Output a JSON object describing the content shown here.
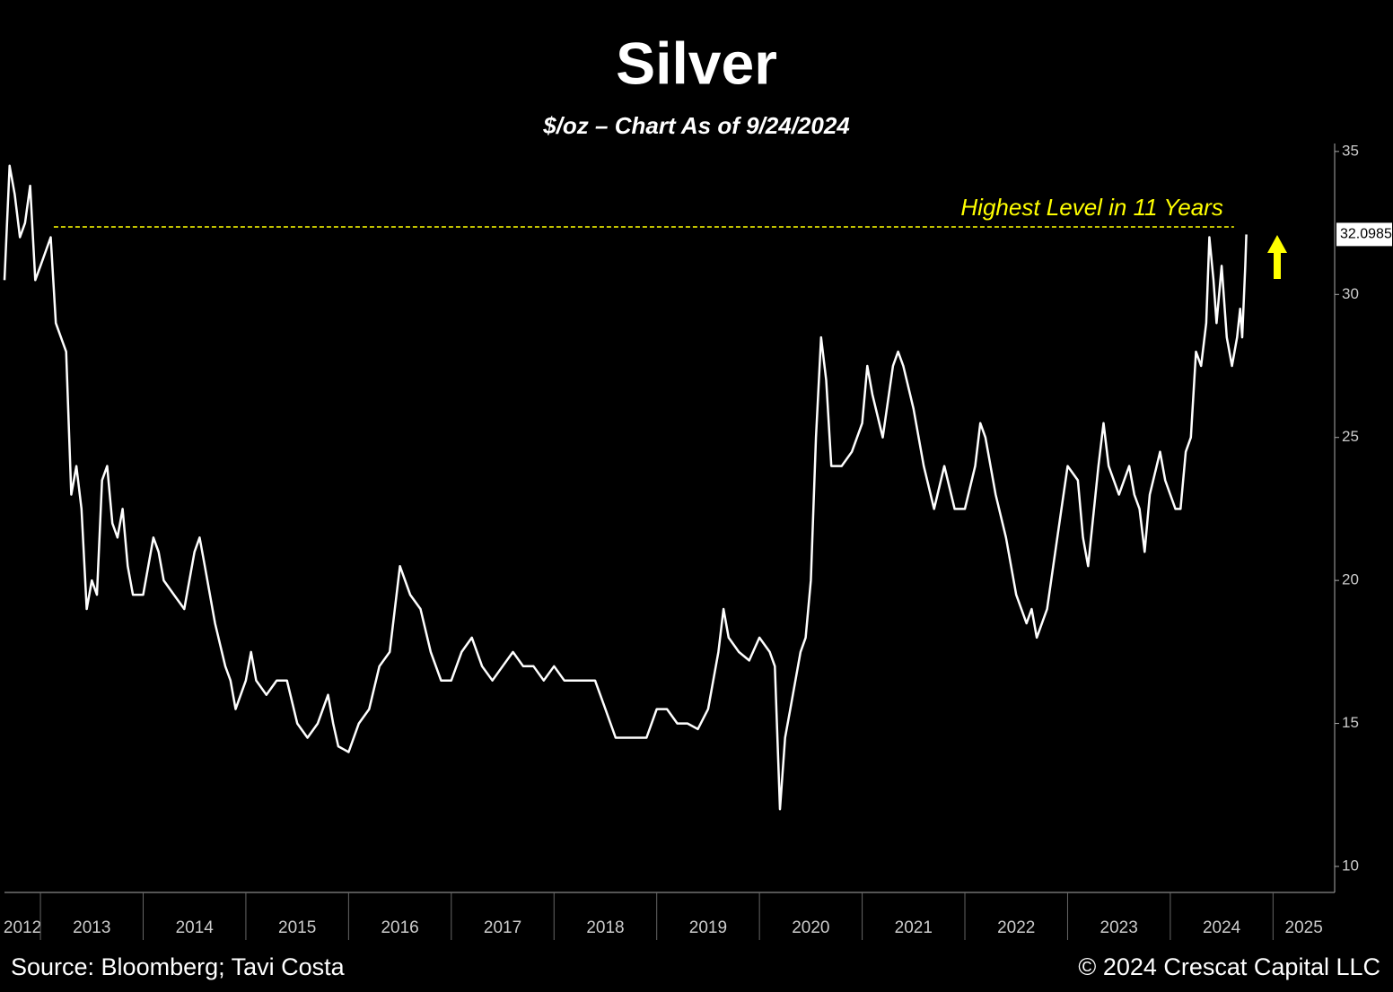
{
  "chart_data": {
    "type": "line",
    "title": "Silver",
    "subtitle": "$/oz – Chart As of 9/24/2024",
    "source": "Source: Bloomberg; Tavi Costa",
    "copyright": "© 2024 Crescat Capital LLC",
    "annotation": {
      "text": "Highest Level in 11 Years",
      "value": 32.36,
      "x": [
        2013.13,
        2024.62
      ],
      "color": "#ffff00"
    },
    "xlim": [
      2012.65,
      2025.6
    ],
    "xticks": [
      2012,
      2013,
      2014,
      2015,
      2016,
      2017,
      2018,
      2019,
      2020,
      2021,
      2022,
      2023,
      2024,
      2025
    ],
    "ylim": [
      10,
      36.2
    ],
    "yticks": [
      10,
      15,
      20,
      25,
      30,
      35
    ],
    "x": [
      2012.65,
      2012.7,
      2012.75,
      2012.8,
      2012.85,
      2012.9,
      2012.95,
      2013.0,
      2013.05,
      2013.1,
      2013.15,
      2013.2,
      2013.25,
      2013.3,
      2013.35,
      2013.4,
      2013.45,
      2013.5,
      2013.55,
      2013.6,
      2013.65,
      2013.7,
      2013.75,
      2013.8,
      2013.85,
      2013.9,
      2014.0,
      2014.1,
      2014.15,
      2014.2,
      2014.3,
      2014.4,
      2014.45,
      2014.5,
      2014.55,
      2014.6,
      2014.7,
      2014.8,
      2014.85,
      2014.9,
      2015.0,
      2015.05,
      2015.1,
      2015.2,
      2015.3,
      2015.4,
      2015.5,
      2015.6,
      2015.7,
      2015.8,
      2015.85,
      2015.9,
      2016.0,
      2016.1,
      2016.2,
      2016.3,
      2016.4,
      2016.45,
      2016.5,
      2016.55,
      2016.6,
      2016.7,
      2016.8,
      2016.9,
      2017.0,
      2017.1,
      2017.2,
      2017.3,
      2017.4,
      2017.5,
      2017.6,
      2017.7,
      2017.8,
      2017.9,
      2018.0,
      2018.1,
      2018.2,
      2018.3,
      2018.4,
      2018.5,
      2018.6,
      2018.7,
      2018.8,
      2018.9,
      2019.0,
      2019.1,
      2019.2,
      2019.3,
      2019.4,
      2019.5,
      2019.6,
      2019.65,
      2019.7,
      2019.8,
      2019.9,
      2020.0,
      2020.1,
      2020.15,
      2020.2,
      2020.25,
      2020.3,
      2020.4,
      2020.45,
      2020.5,
      2020.55,
      2020.6,
      2020.65,
      2020.7,
      2020.8,
      2020.9,
      2021.0,
      2021.05,
      2021.1,
      2021.2,
      2021.3,
      2021.35,
      2021.4,
      2021.5,
      2021.6,
      2021.7,
      2021.8,
      2021.9,
      2022.0,
      2022.1,
      2022.15,
      2022.2,
      2022.3,
      2022.4,
      2022.5,
      2022.6,
      2022.65,
      2022.7,
      2022.8,
      2022.9,
      2023.0,
      2023.1,
      2023.15,
      2023.2,
      2023.3,
      2023.35,
      2023.4,
      2023.5,
      2023.6,
      2023.65,
      2023.7,
      2023.75,
      2023.8,
      2023.9,
      2023.95,
      2024.0,
      2024.05,
      2024.1,
      2024.15,
      2024.2,
      2024.25,
      2024.3,
      2024.35,
      2024.38,
      2024.42,
      2024.45,
      2024.5,
      2024.55,
      2024.6,
      2024.65,
      2024.68,
      2024.7,
      2024.73,
      2024.74
    ],
    "series": [
      {
        "name": "Silver",
        "color": "#ffffff",
        "values": [
          30.5,
          34.5,
          33.5,
          32.0,
          32.5,
          33.8,
          30.5,
          31.0,
          31.5,
          32.0,
          29.0,
          28.5,
          28.0,
          23.0,
          24.0,
          22.5,
          19.0,
          20.0,
          19.5,
          23.5,
          24.0,
          22.0,
          21.5,
          22.5,
          20.5,
          19.5,
          19.5,
          21.5,
          21.0,
          20.0,
          19.5,
          19.0,
          20.0,
          21.0,
          21.5,
          20.5,
          18.5,
          17.0,
          16.5,
          15.5,
          16.5,
          17.5,
          16.5,
          16.0,
          16.5,
          16.5,
          15.0,
          14.5,
          15.0,
          16.0,
          15.0,
          14.2,
          14.0,
          15.0,
          15.5,
          17.0,
          17.5,
          19.0,
          20.5,
          20.0,
          19.5,
          19.0,
          17.5,
          16.5,
          16.5,
          17.5,
          18.0,
          17.0,
          16.5,
          17.0,
          17.5,
          17.0,
          17.0,
          16.5,
          17.0,
          16.5,
          16.5,
          16.5,
          16.5,
          15.5,
          14.5,
          14.5,
          14.5,
          14.5,
          15.5,
          15.5,
          15.0,
          15.0,
          14.8,
          15.5,
          17.5,
          19.0,
          18.0,
          17.5,
          17.2,
          18.0,
          17.5,
          17.0,
          12.0,
          14.5,
          15.5,
          17.5,
          18.0,
          20.0,
          25.0,
          28.5,
          27.0,
          24.0,
          24.0,
          24.5,
          25.5,
          27.5,
          26.5,
          25.0,
          27.5,
          28.0,
          27.5,
          26.0,
          24.0,
          22.5,
          24.0,
          22.5,
          22.5,
          24.0,
          25.5,
          25.0,
          23.0,
          21.5,
          19.5,
          18.5,
          19.0,
          18.0,
          19.0,
          21.5,
          24.0,
          23.5,
          21.5,
          20.5,
          24.0,
          25.5,
          24.0,
          23.0,
          24.0,
          23.0,
          22.5,
          21.0,
          23.0,
          24.5,
          23.5,
          23.0,
          22.5,
          22.5,
          24.5,
          25.0,
          28.0,
          27.5,
          29.0,
          32.0,
          30.5,
          29.0,
          31.0,
          28.5,
          27.5,
          28.5,
          29.5,
          28.5,
          31.0,
          32.0985
        ]
      }
    ]
  }
}
